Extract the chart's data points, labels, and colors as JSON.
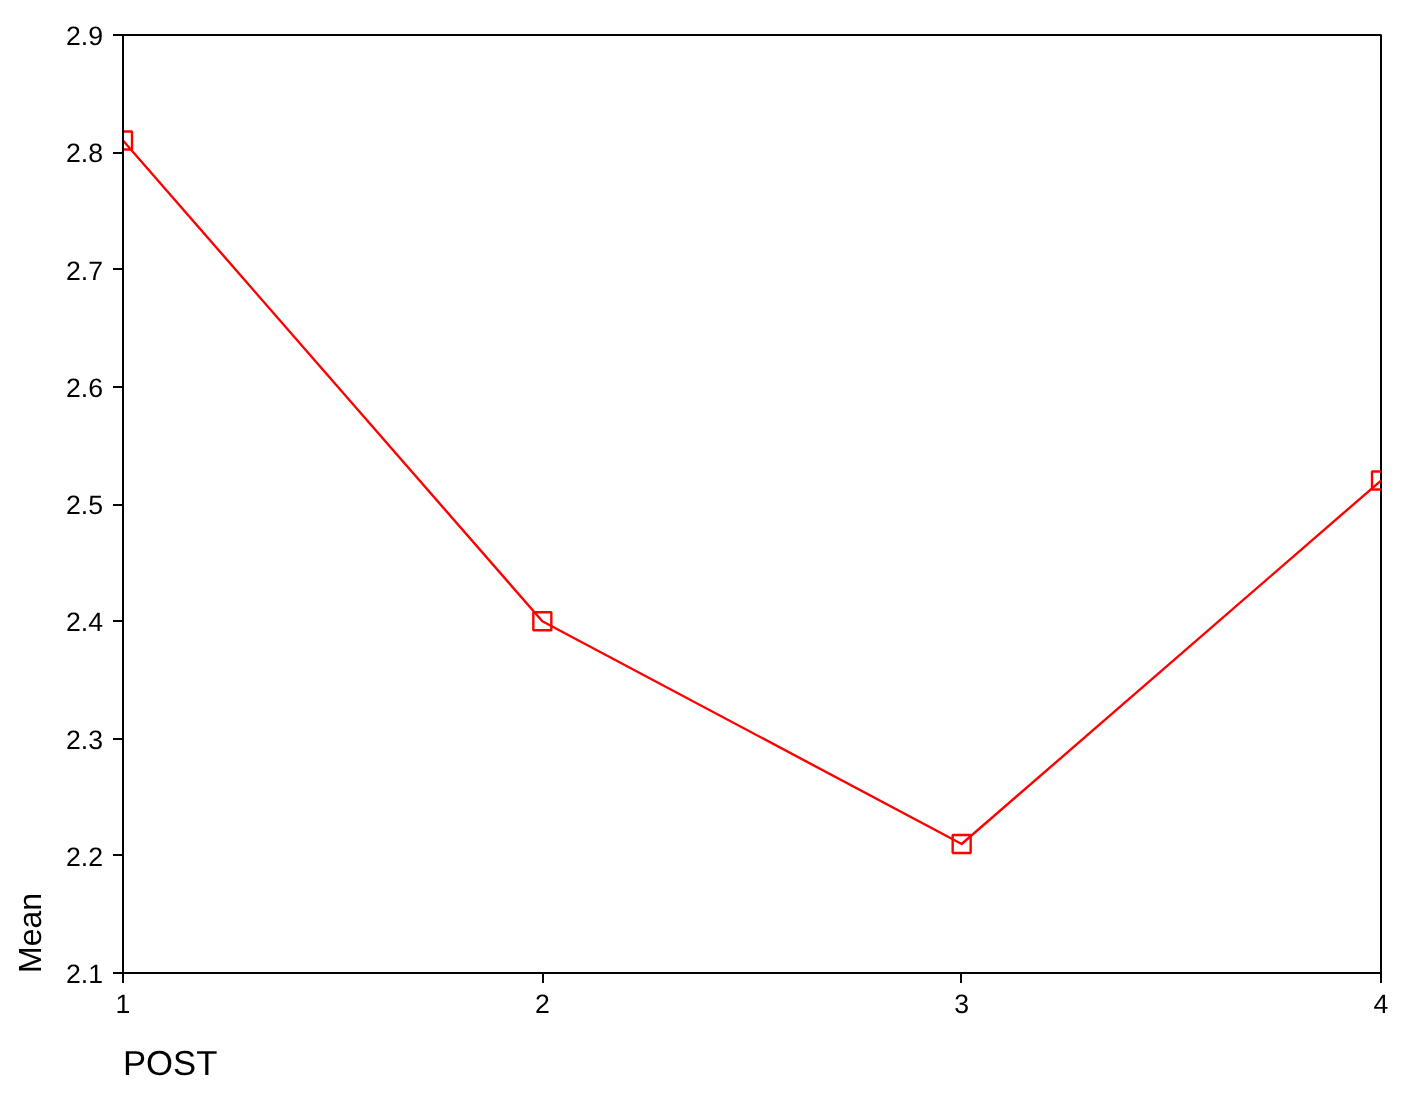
{
  "chart_data": {
    "type": "line",
    "xlabel": "POST",
    "ylabel": "Mean",
    "x": [
      1,
      2,
      3,
      4
    ],
    "series": [
      {
        "color": "#ff0000",
        "values": [
          2.81,
          2.4,
          2.21,
          2.52
        ]
      }
    ],
    "xlim": [
      1,
      4
    ],
    "xticks": [
      1,
      2,
      3,
      4
    ],
    "ylim": [
      2.1,
      2.9
    ],
    "yticks": [
      {
        "value": 2.1,
        "label": "2.1"
      },
      {
        "value": 2.2,
        "label": "2.2"
      },
      {
        "value": 2.3,
        "label": "2.3"
      },
      {
        "value": 2.4,
        "label": "2.4"
      },
      {
        "value": 2.5,
        "label": "2.5"
      },
      {
        "value": 2.6,
        "label": "2.6"
      },
      {
        "value": 2.7,
        "label": "2.7"
      },
      {
        "value": 2.8,
        "label": "2.8"
      },
      {
        "value": 2.9,
        "label": "2.9"
      }
    ],
    "marker": "square",
    "grid": false
  }
}
